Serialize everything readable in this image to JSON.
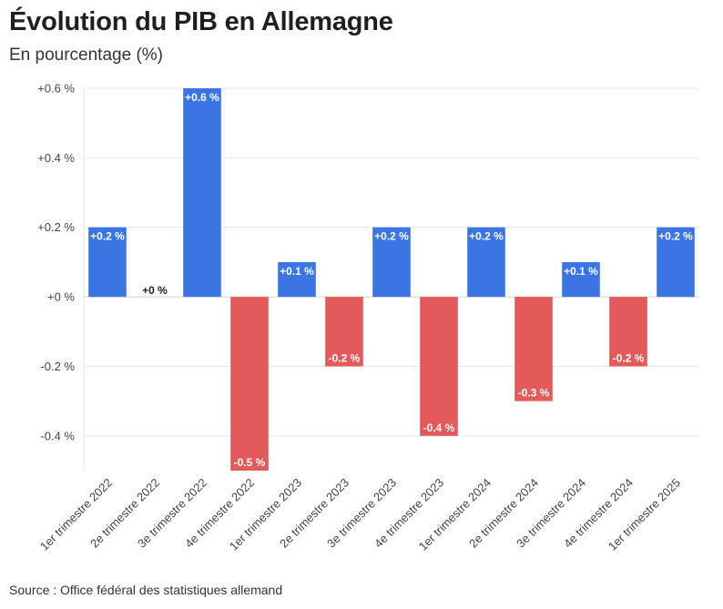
{
  "header": {
    "title": "Évolution du PIB en Allemagne",
    "subtitle": "En pourcentage (%)"
  },
  "footer": {
    "source": "Source : Office fédéral des statistiques allemand"
  },
  "colors": {
    "positive": "#3b75e3",
    "negative": "#e35a5a",
    "grid": "#e6e6e6",
    "zero_line": "#d0d0d0"
  },
  "chart_data": {
    "type": "bar",
    "title": "Évolution du PIB en Allemagne",
    "subtitle": "En pourcentage (%)",
    "xlabel": "",
    "ylabel": "",
    "ylim": [
      -0.5,
      0.6
    ],
    "yticks": [
      0.6,
      0.4,
      0.2,
      0,
      -0.2,
      -0.4
    ],
    "ytick_labels": [
      "+0.6 %",
      "+0.4 %",
      "+0.2 %",
      "+0 %",
      "-0.2 %",
      "-0.4 %"
    ],
    "grid": true,
    "categories": [
      "1er trimestre 2022",
      "2e trimestre 2022",
      "3e trimestre 2022",
      "4e trimestre 2022",
      "1er trimestre 2023",
      "2e trimestre 2023",
      "3e trimestre 2023",
      "4e trimestre 2023",
      "1er trimestre 2024",
      "2e trimestre 2024",
      "3e trimestre 2024",
      "4e trimestre 2024",
      "1er trimestre 2025"
    ],
    "values": [
      0.2,
      0,
      0.6,
      -0.5,
      0.1,
      -0.2,
      0.2,
      -0.4,
      0.2,
      -0.3,
      0.1,
      -0.2,
      0.2
    ],
    "data_labels": [
      "+0.2 %",
      "+0 %",
      "+0.6 %",
      "-0.5 %",
      "+0.1 %",
      "-0.2 %",
      "+0.2 %",
      "-0.4 %",
      "+0.2 %",
      "-0.3 %",
      "+0.1 %",
      "-0.2 %",
      "+0.2 %"
    ]
  }
}
